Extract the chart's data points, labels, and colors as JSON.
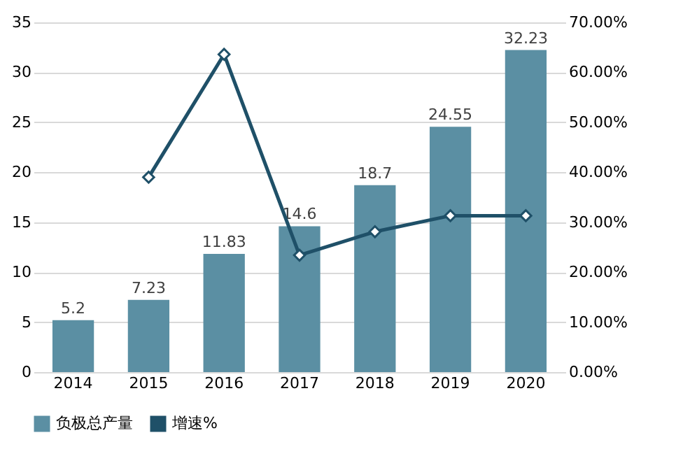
{
  "chart_data": {
    "type": "bar",
    "categories": [
      "2014",
      "2015",
      "2016",
      "2017",
      "2018",
      "2019",
      "2020"
    ],
    "series": [
      {
        "name": "负极总产量",
        "color": "#5b8fa3",
        "values": [
          5.2,
          7.23,
          11.83,
          14.6,
          18.7,
          24.55,
          32.23
        ],
        "data_labels": true
      },
      {
        "name": "增速%",
        "type": "line",
        "axis": "y2",
        "color": "#1f5068",
        "marker": "diamond",
        "values": [
          null,
          39.0,
          63.6,
          23.4,
          28.1,
          31.3,
          31.3
        ]
      }
    ],
    "ylim": [
      0,
      35
    ],
    "yticks": [
      0,
      5,
      10,
      15,
      20,
      25,
      30,
      35
    ],
    "y2lim": [
      0,
      70
    ],
    "y2ticks": [
      {
        "value": 0,
        "label": "0.00%"
      },
      {
        "value": 10,
        "label": "10.00%"
      },
      {
        "value": 20,
        "label": "20.00%"
      },
      {
        "value": 30,
        "label": "30.00%"
      },
      {
        "value": 40,
        "label": "40.00%"
      },
      {
        "value": 50,
        "label": "50.00%"
      },
      {
        "value": 60,
        "label": "60.00%"
      },
      {
        "value": 70,
        "label": "70.00%"
      }
    ],
    "grid": "y",
    "legend": "bottom"
  }
}
